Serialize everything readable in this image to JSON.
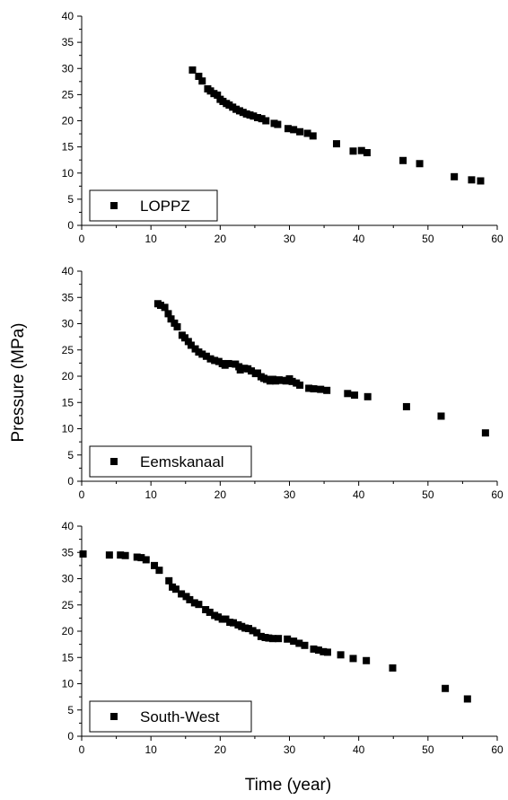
{
  "figure": {
    "ylabel": "Pressure (MPa)",
    "xlabel": "Time (year)"
  },
  "chart_data": [
    {
      "type": "scatter",
      "xlim": [
        0,
        60
      ],
      "ylim": [
        0,
        40
      ],
      "x_ticks": [
        "0",
        "10",
        "20",
        "30",
        "40",
        "50",
        "60"
      ],
      "y_ticks": [
        "0",
        "5",
        "10",
        "15",
        "20",
        "25",
        "30",
        "35",
        "40"
      ],
      "grid": false,
      "legend_position": "bottom-left",
      "series": [
        {
          "name": "LOPPZ",
          "color": "#000000",
          "marker": "square",
          "points": [
            [
              16.0,
              29.7
            ],
            [
              16.9,
              28.5
            ],
            [
              17.4,
              27.6
            ],
            [
              18.2,
              26.1
            ],
            [
              18.6,
              25.7
            ],
            [
              19.1,
              25.2
            ],
            [
              19.6,
              24.9
            ],
            [
              20.0,
              24.1
            ],
            [
              20.4,
              23.7
            ],
            [
              20.9,
              23.3
            ],
            [
              21.3,
              23.0
            ],
            [
              21.8,
              22.6
            ],
            [
              22.3,
              22.2
            ],
            [
              22.8,
              21.9
            ],
            [
              23.3,
              21.6
            ],
            [
              23.8,
              21.3
            ],
            [
              24.3,
              21.1
            ],
            [
              24.8,
              20.9
            ],
            [
              25.4,
              20.6
            ],
            [
              26.0,
              20.4
            ],
            [
              26.6,
              20.0
            ],
            [
              27.8,
              19.5
            ],
            [
              28.3,
              19.3
            ],
            [
              29.8,
              18.5
            ],
            [
              30.6,
              18.3
            ],
            [
              31.5,
              17.9
            ],
            [
              32.6,
              17.6
            ],
            [
              33.4,
              17.1
            ],
            [
              36.8,
              15.6
            ],
            [
              39.2,
              14.2
            ],
            [
              40.4,
              14.3
            ],
            [
              41.2,
              13.9
            ],
            [
              46.4,
              12.4
            ],
            [
              48.8,
              11.8
            ],
            [
              53.8,
              9.3
            ],
            [
              56.3,
              8.7
            ],
            [
              57.6,
              8.5
            ]
          ]
        }
      ]
    },
    {
      "type": "scatter",
      "xlim": [
        0,
        60
      ],
      "ylim": [
        0,
        40
      ],
      "x_ticks": [
        "0",
        "10",
        "20",
        "30",
        "40",
        "50",
        "60"
      ],
      "y_ticks": [
        "0",
        "5",
        "10",
        "15",
        "20",
        "25",
        "30",
        "35",
        "40"
      ],
      "grid": false,
      "legend_position": "bottom-left",
      "series": [
        {
          "name": "Eemskanaal",
          "color": "#000000",
          "marker": "square",
          "points": [
            [
              11.0,
              33.8
            ],
            [
              11.4,
              33.5
            ],
            [
              12.0,
              33.1
            ],
            [
              12.5,
              31.9
            ],
            [
              12.9,
              30.9
            ],
            [
              13.4,
              30.1
            ],
            [
              13.8,
              29.4
            ],
            [
              14.5,
              27.8
            ],
            [
              14.9,
              27.3
            ],
            [
              15.4,
              26.6
            ],
            [
              15.8,
              25.9
            ],
            [
              16.4,
              25.2
            ],
            [
              16.9,
              24.6
            ],
            [
              17.4,
              24.2
            ],
            [
              18.0,
              23.8
            ],
            [
              18.6,
              23.3
            ],
            [
              19.2,
              23.0
            ],
            [
              19.8,
              22.8
            ],
            [
              20.3,
              22.4
            ],
            [
              20.7,
              22.1
            ],
            [
              21.2,
              22.4
            ],
            [
              22.2,
              22.3
            ],
            [
              22.7,
              21.8
            ],
            [
              22.9,
              21.2
            ],
            [
              23.5,
              21.5
            ],
            [
              24.0,
              21.4
            ],
            [
              24.5,
              21.0
            ],
            [
              25.1,
              20.5
            ],
            [
              25.4,
              20.6
            ],
            [
              25.9,
              19.9
            ],
            [
              26.3,
              19.6
            ],
            [
              26.7,
              19.4
            ],
            [
              27.2,
              19.1
            ],
            [
              27.6,
              19.4
            ],
            [
              28.0,
              19.1
            ],
            [
              28.5,
              19.3
            ],
            [
              29.0,
              19.2
            ],
            [
              29.5,
              19.1
            ],
            [
              30.0,
              19.5
            ],
            [
              30.4,
              19.0
            ],
            [
              31.0,
              18.7
            ],
            [
              31.5,
              18.3
            ],
            [
              32.8,
              17.7
            ],
            [
              33.5,
              17.6
            ],
            [
              34.5,
              17.5
            ],
            [
              35.4,
              17.3
            ],
            [
              38.4,
              16.7
            ],
            [
              39.4,
              16.4
            ],
            [
              41.3,
              16.1
            ],
            [
              46.9,
              14.2
            ],
            [
              51.9,
              12.4
            ],
            [
              58.3,
              9.2
            ]
          ]
        }
      ]
    },
    {
      "type": "scatter",
      "xlim": [
        0,
        60
      ],
      "ylim": [
        0,
        40
      ],
      "x_ticks": [
        "0",
        "10",
        "20",
        "30",
        "40",
        "50",
        "60"
      ],
      "y_ticks": [
        "0",
        "5",
        "10",
        "15",
        "20",
        "25",
        "30",
        "35",
        "40"
      ],
      "grid": false,
      "legend_position": "bottom-left",
      "series": [
        {
          "name": "South-West",
          "color": "#000000",
          "marker": "square",
          "points": [
            [
              0.2,
              34.7
            ],
            [
              4.0,
              34.5
            ],
            [
              5.6,
              34.5
            ],
            [
              6.3,
              34.4
            ],
            [
              8.0,
              34.1
            ],
            [
              8.6,
              34.0
            ],
            [
              9.3,
              33.6
            ],
            [
              10.5,
              32.5
            ],
            [
              11.2,
              31.6
            ],
            [
              12.6,
              29.6
            ],
            [
              13.1,
              28.4
            ],
            [
              13.6,
              28.0
            ],
            [
              14.4,
              27.1
            ],
            [
              15.1,
              26.6
            ],
            [
              15.6,
              26.0
            ],
            [
              16.3,
              25.4
            ],
            [
              16.9,
              25.1
            ],
            [
              17.9,
              24.1
            ],
            [
              18.5,
              23.6
            ],
            [
              19.2,
              23.0
            ],
            [
              19.7,
              22.7
            ],
            [
              20.3,
              22.3
            ],
            [
              20.8,
              22.3
            ],
            [
              21.4,
              21.7
            ],
            [
              21.9,
              21.6
            ],
            [
              22.6,
              21.2
            ],
            [
              23.1,
              20.9
            ],
            [
              23.6,
              20.6
            ],
            [
              24.1,
              20.5
            ],
            [
              24.7,
              20.1
            ],
            [
              25.3,
              19.7
            ],
            [
              25.9,
              19.0
            ],
            [
              26.5,
              18.8
            ],
            [
              27.0,
              18.7
            ],
            [
              27.6,
              18.6
            ],
            [
              28.4,
              18.6
            ],
            [
              29.7,
              18.5
            ],
            [
              30.6,
              18.1
            ],
            [
              31.4,
              17.7
            ],
            [
              32.2,
              17.3
            ],
            [
              33.5,
              16.6
            ],
            [
              34.2,
              16.4
            ],
            [
              34.9,
              16.1
            ],
            [
              35.5,
              16.0
            ],
            [
              37.4,
              15.5
            ],
            [
              39.2,
              14.8
            ],
            [
              41.1,
              14.4
            ],
            [
              44.9,
              13.0
            ],
            [
              52.5,
              9.1
            ],
            [
              55.7,
              7.1
            ]
          ]
        }
      ]
    }
  ]
}
